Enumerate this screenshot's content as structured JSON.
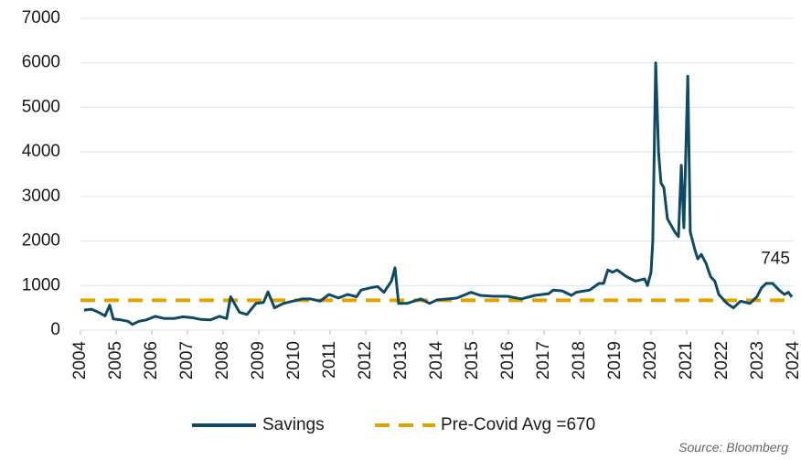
{
  "chart_data": {
    "type": "line",
    "x": [
      2004.1,
      2004.31,
      2004.51,
      2004.69,
      2004.82,
      2004.92,
      2005.13,
      2005.33,
      2005.46,
      2005.64,
      2005.85,
      2006.1,
      2006.36,
      2006.62,
      2006.87,
      2007.13,
      2007.38,
      2007.64,
      2007.9,
      2008.1,
      2008.21,
      2008.46,
      2008.67,
      2008.92,
      2009.13,
      2009.26,
      2009.44,
      2009.69,
      2009.95,
      2010.21,
      2010.46,
      2010.72,
      2010.97,
      2011.23,
      2011.49,
      2011.74,
      2011.87,
      2012.13,
      2012.33,
      2012.51,
      2012.72,
      2012.82,
      2012.92,
      2013.15,
      2013.54,
      2013.79,
      2014.0,
      2014.31,
      2014.56,
      2014.95,
      2015.21,
      2015.59,
      2015.97,
      2016.36,
      2016.74,
      2017.13,
      2017.26,
      2017.51,
      2017.77,
      2017.9,
      2018.28,
      2018.54,
      2018.67,
      2018.79,
      2018.92,
      2019.05,
      2019.31,
      2019.56,
      2019.82,
      2019.9,
      2020.0,
      2020.05,
      2020.13,
      2020.21,
      2020.28,
      2020.36,
      2020.46,
      2020.67,
      2020.77,
      2020.85,
      2020.92,
      2021.03,
      2021.1,
      2021.23,
      2021.31,
      2021.41,
      2021.54,
      2021.67,
      2021.79,
      2021.9,
      2022.13,
      2022.31,
      2022.51,
      2022.77,
      2022.97,
      2023.1,
      2023.23,
      2023.41,
      2023.59,
      2023.74,
      2023.85,
      2023.95
    ],
    "series": [
      {
        "name": "Savings",
        "color": "#0e4a63",
        "values": [
          450,
          470,
          400,
          320,
          560,
          250,
          230,
          200,
          130,
          200,
          230,
          310,
          260,
          260,
          300,
          280,
          240,
          230,
          310,
          260,
          750,
          400,
          350,
          600,
          620,
          860,
          500,
          600,
          650,
          700,
          700,
          650,
          800,
          720,
          800,
          750,
          900,
          950,
          980,
          850,
          1100,
          1400,
          600,
          600,
          700,
          600,
          680,
          700,
          720,
          850,
          780,
          760,
          760,
          700,
          780,
          820,
          900,
          880,
          780,
          850,
          900,
          1050,
          1050,
          1350,
          1300,
          1350,
          1200,
          1100,
          1150,
          1000,
          1300,
          2000,
          6000,
          4000,
          3300,
          3200,
          2500,
          2200,
          2100,
          3700,
          2300,
          5700,
          2200,
          1800,
          1600,
          1700,
          1500,
          1200,
          1100,
          800,
          600,
          500,
          650,
          600,
          750,
          950,
          1050,
          1050,
          900,
          800,
          850,
          745
        ]
      }
    ],
    "reference_line": {
      "name": "Pre-Covid Avg =670",
      "value": 670,
      "color": "#e0a400"
    },
    "annotations": [
      {
        "text": "745"
      }
    ],
    "xlim": [
      2004,
      2024
    ],
    "xticks": [
      2004,
      2005,
      2006,
      2007,
      2008,
      2009,
      2010,
      2011,
      2012,
      2013,
      2014,
      2015,
      2016,
      2017,
      2018,
      2019,
      2020,
      2021,
      2022,
      2023,
      2024
    ],
    "ylim": [
      0,
      7000
    ],
    "yticks": [
      0,
      1000,
      2000,
      3000,
      4000,
      5000,
      6000,
      7000
    ],
    "grid": true,
    "legend": "bottom",
    "source": "Source: Bloomberg"
  }
}
